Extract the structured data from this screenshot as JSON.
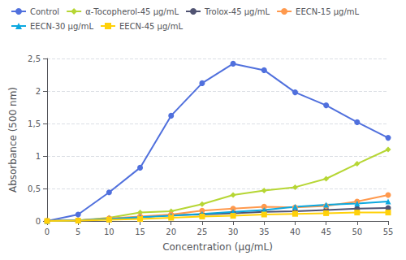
{
  "chart_data": {
    "type": "line",
    "xlabel": "Concentration (μg/mL)",
    "ylabel": "Absorbance (500 nm)",
    "x": [
      0,
      5,
      10,
      15,
      20,
      25,
      30,
      35,
      40,
      45,
      50,
      55
    ],
    "series": [
      {
        "name": "Control",
        "marker": "circle",
        "values": [
          0.0,
          0.1,
          0.44,
          0.82,
          1.62,
          2.12,
          2.42,
          2.32,
          1.98,
          1.78,
          1.52,
          1.28
        ]
      },
      {
        "name": "α-Tocopherol-45 μg/mL",
        "marker": "diamond",
        "values": [
          0.0,
          0.01,
          0.05,
          0.13,
          0.15,
          0.26,
          0.4,
          0.47,
          0.52,
          0.65,
          0.88,
          1.1
        ]
      },
      {
        "name": "Trolox-45 μg/mL",
        "marker": "circle",
        "values": [
          0.0,
          0.01,
          0.03,
          0.06,
          0.09,
          0.1,
          0.12,
          0.14,
          0.15,
          0.17,
          0.19,
          0.2
        ]
      },
      {
        "name": "EECN-15 μg/mL",
        "marker": "circle",
        "values": [
          0.0,
          0.01,
          0.04,
          0.07,
          0.1,
          0.16,
          0.19,
          0.22,
          0.21,
          0.23,
          0.3,
          0.4
        ]
      },
      {
        "name": "EECN-30 μg/mL",
        "marker": "triangle",
        "values": [
          0.0,
          0.01,
          0.03,
          0.06,
          0.08,
          0.11,
          0.14,
          0.17,
          0.22,
          0.25,
          0.27,
          0.3
        ]
      },
      {
        "name": "EECN-45 μg/mL",
        "marker": "square",
        "values": [
          0.0,
          0.005,
          0.02,
          0.03,
          0.05,
          0.07,
          0.08,
          0.1,
          0.11,
          0.12,
          0.13,
          0.13
        ]
      }
    ],
    "xlim": [
      0,
      55
    ],
    "xticks": [
      0,
      5,
      10,
      15,
      20,
      25,
      30,
      35,
      40,
      45,
      50,
      55
    ],
    "ylim": [
      0,
      2.5
    ],
    "yticks": [
      0,
      {
        "value": 0.5,
        "label": "0,5"
      },
      1,
      {
        "value": 1.5,
        "label": "1,5"
      },
      2,
      {
        "value": 2.5,
        "label": "2,5"
      }
    ],
    "grid": true,
    "legend": "upper left"
  }
}
